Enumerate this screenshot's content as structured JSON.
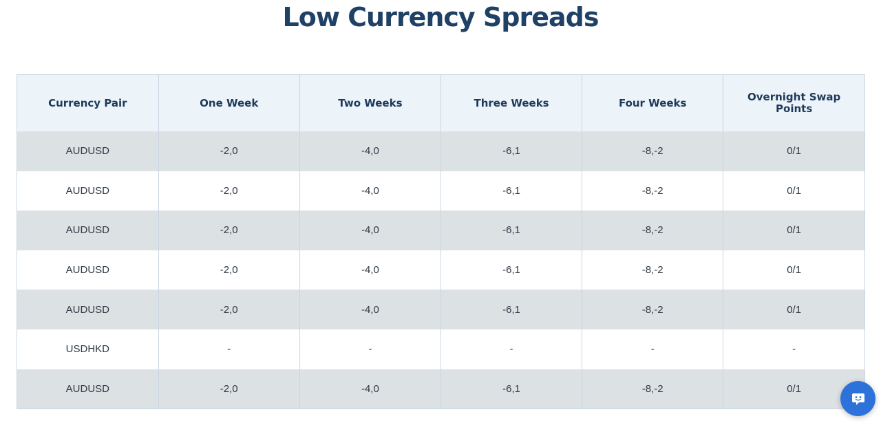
{
  "page": {
    "title": "Low Currency Spreads"
  },
  "table": {
    "headers": [
      "Currency Pair",
      "One Week",
      "Two Weeks",
      "Three Weeks",
      "Four Weeks",
      "Overnight Swap Points"
    ],
    "rows": [
      [
        "AUDUSD",
        "-2,0",
        "-4,0",
        "-6,1",
        "-8,-2",
        "0/1"
      ],
      [
        "AUDUSD",
        "-2,0",
        "-4,0",
        "-6,1",
        "-8,-2",
        "0/1"
      ],
      [
        "AUDUSD",
        "-2,0",
        "-4,0",
        "-6,1",
        "-8,-2",
        "0/1"
      ],
      [
        "AUDUSD",
        "-2,0",
        "-4,0",
        "-6,1",
        "-8,-2",
        "0/1"
      ],
      [
        "AUDUSD",
        "-2,0",
        "-4,0",
        "-6,1",
        "-8,-2",
        "0/1"
      ],
      [
        "USDHKD",
        "-",
        "-",
        "-",
        "-",
        "-"
      ],
      [
        "AUDUSD",
        "-2,0",
        "-4,0",
        "-6,1",
        "-8,-2",
        "0/1"
      ]
    ]
  },
  "chat_widget": {
    "icon": "chat-bot-icon",
    "color": "#2d72d9"
  },
  "colors": {
    "title": "#1e4165",
    "header_bg": "#ecf3f9",
    "stripe_bg": "#dce1e4"
  }
}
